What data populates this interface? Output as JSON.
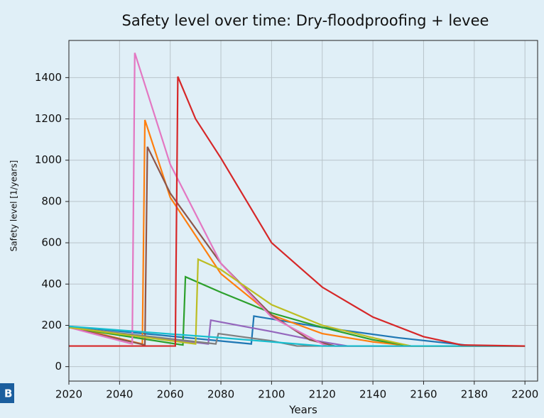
{
  "chart_data": {
    "type": "line",
    "title": "Safety level over time: Dry-floodproofing + levee",
    "x_label": "Years",
    "y_label": "Safety level [1/years]",
    "panel_label": "B",
    "xlim": [
      2020,
      2205
    ],
    "xticks": [
      2020,
      2040,
      2060,
      2080,
      2100,
      2120,
      2140,
      2160,
      2180,
      2200
    ],
    "ylim": [
      -70,
      1580
    ],
    "yticks": [
      0,
      200,
      400,
      600,
      800,
      1000,
      1200,
      1400
    ],
    "grid": true,
    "series": [
      {
        "color": "#1f77b4",
        "x": [
          2020,
          2092,
          2093,
          2120,
          2150,
          2180,
          2200
        ],
        "values": [
          195,
          110,
          245,
          190,
          140,
          100,
          100
        ]
      },
      {
        "color": "#ff7f0e",
        "x": [
          2020,
          2049,
          2050,
          2060,
          2080,
          2100,
          2120,
          2140,
          2155,
          2200
        ],
        "values": [
          195,
          110,
          1195,
          820,
          450,
          250,
          160,
          120,
          100,
          100
        ]
      },
      {
        "color": "#2ca02c",
        "x": [
          2020,
          2065,
          2066,
          2080,
          2100,
          2120,
          2140,
          2155,
          2200
        ],
        "values": [
          190,
          105,
          435,
          360,
          260,
          190,
          130,
          100,
          100
        ]
      },
      {
        "color": "#9467bd",
        "x": [
          2020,
          2075,
          2076,
          2100,
          2120,
          2130,
          2200
        ],
        "values": [
          190,
          110,
          225,
          170,
          120,
          100,
          100
        ]
      },
      {
        "color": "#8c564b",
        "x": [
          2020,
          2050,
          2051,
          2060,
          2080,
          2100,
          2115,
          2125,
          2200
        ],
        "values": [
          190,
          105,
          1065,
          840,
          500,
          250,
          130,
          100,
          100
        ]
      },
      {
        "color": "#e377c2",
        "x": [
          2020,
          2045,
          2046,
          2060,
          2080,
          2100,
          2120,
          2122,
          2200
        ],
        "values": [
          190,
          110,
          1520,
          980,
          500,
          240,
          110,
          100,
          100
        ]
      },
      {
        "color": "#7f7f7f",
        "x": [
          2020,
          2078,
          2079,
          2100,
          2110,
          2200
        ],
        "values": [
          190,
          110,
          160,
          125,
          100,
          100
        ]
      },
      {
        "color": "#bcbd22",
        "x": [
          2020,
          2070,
          2071,
          2080,
          2100,
          2120,
          2140,
          2155,
          2200
        ],
        "values": [
          190,
          110,
          520,
          470,
          300,
          200,
          140,
          100,
          100
        ]
      },
      {
        "color": "#17becf",
        "x": [
          2020,
          2080,
          2120,
          2200
        ],
        "values": [
          195,
          140,
          100,
          100
        ]
      },
      {
        "color": "#d62728",
        "x": [
          2020,
          2062,
          2063,
          2070,
          2080,
          2100,
          2120,
          2140,
          2160,
          2175,
          2200
        ],
        "values": [
          100,
          100,
          1405,
          1200,
          1010,
          600,
          385,
          240,
          145,
          105,
          100
        ]
      }
    ]
  }
}
